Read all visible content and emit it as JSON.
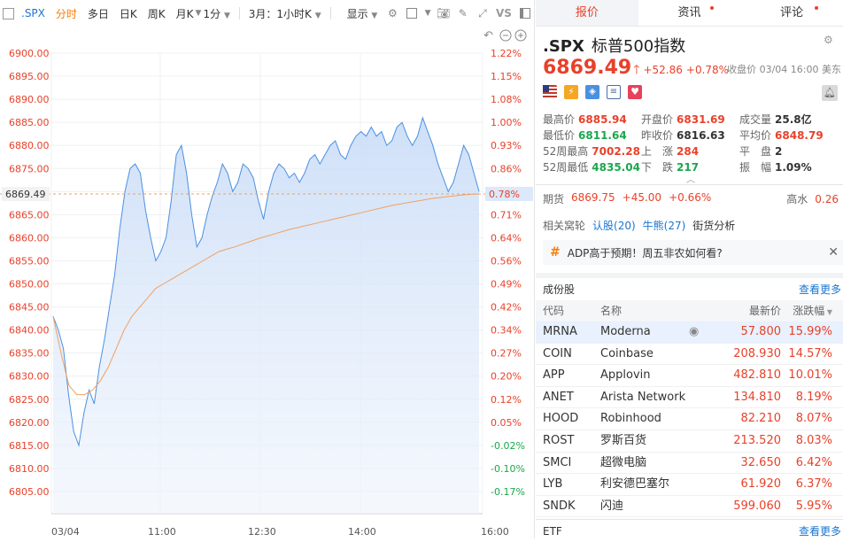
{
  "toolbar": {
    "symbol": ".SPX",
    "periods": [
      "分时",
      "多日",
      "日K",
      "周K",
      "月K"
    ],
    "active_period": "分时",
    "interval": "1分",
    "range": "3月：1小时K",
    "display": "显示",
    "vs": "VS"
  },
  "chart_data": {
    "type": "line",
    "x_ticks": [
      "03/04",
      "11:00",
      "12:30",
      "14:00",
      "16:00"
    ],
    "y_ticks_left": [
      "6900.00",
      "6895.00",
      "6890.00",
      "6885.00",
      "6880.00",
      "6875.00",
      "6870.00",
      "6865.00",
      "6860.00",
      "6855.00",
      "6850.00",
      "6845.00",
      "6840.00",
      "6835.00",
      "6830.00",
      "6825.00",
      "6820.00",
      "6815.00",
      "6810.00",
      "6805.00"
    ],
    "y_ticks_right": [
      "1.22%",
      "1.15%",
      "1.08%",
      "1.00%",
      "0.93%",
      "0.86%",
      "0.78%",
      "0.71%",
      "0.64%",
      "0.56%",
      "0.49%",
      "0.42%",
      "0.34%",
      "0.27%",
      "0.20%",
      "0.12%",
      "0.05%",
      "-0.02%",
      "-0.10%",
      "-0.17%"
    ],
    "ylim": [
      6805,
      6900
    ],
    "current_price_label": "6869.49",
    "current_pct_label": "0.78%",
    "series": [
      {
        "name": "价格",
        "color": "#4a90e2",
        "values": [
          6843,
          6840,
          6836,
          6826,
          6818,
          6815,
          6822,
          6827,
          6824,
          6832,
          6838,
          6845,
          6852,
          6862,
          6870,
          6875,
          6876,
          6874,
          6866,
          6860,
          6855,
          6857,
          6860,
          6868,
          6878,
          6880,
          6874,
          6865,
          6858,
          6860,
          6865,
          6869,
          6872,
          6876,
          6874,
          6870,
          6872,
          6876,
          6875,
          6873,
          6868,
          6864,
          6870,
          6874,
          6876,
          6875,
          6873,
          6874,
          6872,
          6874,
          6877,
          6878,
          6876,
          6878,
          6880,
          6881,
          6878,
          6877,
          6880,
          6882,
          6883,
          6882,
          6884,
          6882,
          6883,
          6880,
          6881,
          6884,
          6885,
          6882,
          6880,
          6882,
          6886,
          6883,
          6880,
          6876,
          6873,
          6870,
          6872,
          6876,
          6880,
          6878,
          6874,
          6870
        ]
      },
      {
        "name": "均价",
        "color": "#f0a060",
        "values": [
          6843,
          6835,
          6828,
          6826,
          6826,
          6827,
          6829,
          6832,
          6836,
          6840,
          6843,
          6845,
          6847,
          6849,
          6850,
          6851,
          6852,
          6853,
          6854,
          6855,
          6856,
          6857,
          6857.5,
          6858,
          6858.6,
          6859.2,
          6859.8,
          6860.3,
          6860.8,
          6861.3,
          6861.8,
          6862.2,
          6862.6,
          6863,
          6863.4,
          6863.8,
          6864.2,
          6864.6,
          6865,
          6865.4,
          6865.8,
          6866.2,
          6866.6,
          6867,
          6867.3,
          6867.6,
          6867.9,
          6868.2,
          6868.5,
          6868.7,
          6868.9,
          6869.1,
          6869.3,
          6869.4,
          6869.49
        ]
      }
    ],
    "reference_line": 6869.49
  },
  "tabs": [
    {
      "label": "报价",
      "active": true,
      "dot": false
    },
    {
      "label": "资讯",
      "active": false,
      "dot": true
    },
    {
      "label": "评论",
      "active": false,
      "dot": true
    }
  ],
  "quote": {
    "symbol": ".SPX",
    "name": "标普500指数",
    "price": "6869.49",
    "arrow": "🡑",
    "change": "+52.86",
    "change_pct": "+0.78%",
    "close_info": "收盘价 03/04 16:00 美东"
  },
  "stats": [
    [
      {
        "label": "最高价",
        "value": "6885.94",
        "color": "red"
      },
      {
        "label": "开盘价",
        "value": "6831.69",
        "color": "red"
      },
      {
        "label": "成交量",
        "value": "25.8亿",
        "color": "dark"
      }
    ],
    [
      {
        "label": "最低价",
        "value": "6811.64",
        "color": "green"
      },
      {
        "label": "昨收价",
        "value": "6816.63",
        "color": "dark"
      },
      {
        "label": "平均价",
        "value": "6848.79",
        "color": "red"
      }
    ],
    [
      {
        "label": "52周最高",
        "value": "7002.28",
        "color": "red"
      },
      {
        "label": "上　涨",
        "value": "284",
        "color": "red"
      },
      {
        "label": "平　盘",
        "value": "2",
        "color": "dark"
      }
    ],
    [
      {
        "label": "52周最低",
        "value": "4835.04",
        "color": "green"
      },
      {
        "label": "下　跌",
        "value": "217",
        "color": "green"
      },
      {
        "label": "振　幅",
        "value": "1.09%",
        "color": "dark"
      }
    ]
  ],
  "futures": {
    "label": "期货",
    "price": "6869.75",
    "change": "+45.00",
    "pct": "+0.66%",
    "right_label": "高水",
    "right_value": "0.26"
  },
  "related": {
    "label": "相关窝轮",
    "links": [
      "认股(20)",
      "牛熊(27)"
    ],
    "extra": "街货分析"
  },
  "news": {
    "text": "ADP高于预期！周五非农如何看?"
  },
  "constituents": {
    "title": "成份股",
    "more": "查看更多",
    "headers": {
      "code": "代码",
      "name": "名称",
      "price": "最新价",
      "pct": "涨跌幅"
    },
    "rows": [
      {
        "code": "MRNA",
        "name": "Moderna",
        "price": "57.800",
        "pct": "15.99%"
      },
      {
        "code": "COIN",
        "name": "Coinbase",
        "price": "208.930",
        "pct": "14.57%"
      },
      {
        "code": "APP",
        "name": "Applovin",
        "price": "482.810",
        "pct": "10.01%"
      },
      {
        "code": "ANET",
        "name": "Arista Network",
        "price": "134.810",
        "pct": "8.19%"
      },
      {
        "code": "HOOD",
        "name": "Robinhood",
        "price": "82.210",
        "pct": "8.07%"
      },
      {
        "code": "ROST",
        "name": "罗斯百货",
        "price": "213.520",
        "pct": "8.03%"
      },
      {
        "code": "SMCI",
        "name": "超微电脑",
        "price": "32.650",
        "pct": "6.42%"
      },
      {
        "code": "LYB",
        "name": "利安德巴塞尔",
        "price": "61.920",
        "pct": "6.37%"
      },
      {
        "code": "SNDK",
        "name": "闪迪",
        "price": "599.060",
        "pct": "5.95%"
      }
    ]
  },
  "etf": {
    "title": "ETF",
    "more": "查看更多"
  }
}
